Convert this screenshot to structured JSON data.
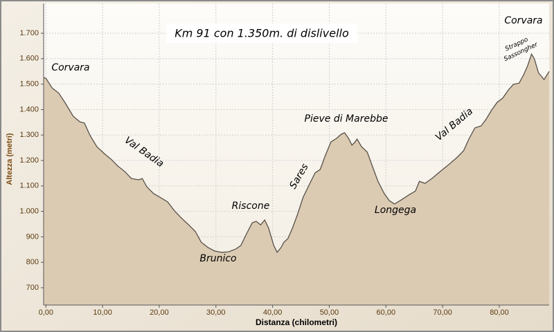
{
  "chart_data": {
    "type": "area",
    "title": "Km 91 con 1.350m. di dislivello",
    "x_label": "Distanza (chilometri)",
    "y_label": "Altezza (metri)",
    "annotations": [
      "Corvara",
      "Val Badia",
      "Riscone",
      "Brunico",
      "Sares",
      "Pieve di Marebbe",
      "Longega",
      "Val Badia",
      "Corvara",
      "Strappo",
      "Sassongher"
    ],
    "x": [
      -0.4,
      0,
      1.1,
      2.3,
      3.5,
      4.8,
      6.0,
      6.8,
      7.8,
      9.0,
      10.3,
      11.5,
      12.7,
      13.9,
      15.1,
      16.4,
      17.0,
      17.8,
      19.0,
      20.3,
      21.5,
      22.7,
      23.9,
      25.2,
      26.4,
      27.4,
      28.6,
      29.8,
      31.0,
      32.2,
      33.5,
      34.4,
      35.4,
      36.4,
      37.1,
      37.9,
      38.6,
      39.3,
      40.2,
      40.8,
      41.5,
      42.0,
      42.7,
      43.5,
      44.4,
      45.4,
      46.4,
      47.5,
      48.4,
      49.3,
      50.3,
      51.3,
      52.1,
      52.7,
      53.4,
      54.0,
      54.5,
      54.9,
      55.7,
      56.7,
      57.6,
      58.6,
      59.7,
      60.6,
      61.5,
      62.5,
      64.0,
      65.2,
      65.9,
      66.9,
      68.1,
      69.6,
      71.1,
      72.5,
      73.7,
      74.7,
      75.7,
      76.8,
      77.7,
      78.6,
      79.6,
      80.6,
      81.6,
      82.5,
      83.5,
      84.3,
      85.0,
      85.7,
      86.2,
      86.9,
      87.9,
      88.8
    ],
    "values": [
      1526,
      1523,
      1485,
      1464,
      1423,
      1374,
      1352,
      1347,
      1298,
      1254,
      1227,
      1205,
      1178,
      1157,
      1129,
      1124,
      1129,
      1097,
      1070,
      1053,
      1037,
      1002,
      974,
      947,
      920,
      879,
      858,
      844,
      839,
      841,
      852,
      866,
      912,
      955,
      961,
      947,
      966,
      934,
      866,
      839,
      858,
      879,
      893,
      934,
      988,
      1056,
      1102,
      1151,
      1165,
      1219,
      1273,
      1287,
      1303,
      1309,
      1287,
      1260,
      1271,
      1284,
      1254,
      1233,
      1178,
      1118,
      1070,
      1042,
      1029,
      1042,
      1064,
      1080,
      1118,
      1110,
      1129,
      1157,
      1184,
      1211,
      1238,
      1287,
      1328,
      1336,
      1363,
      1396,
      1428,
      1445,
      1477,
      1499,
      1504,
      1537,
      1572,
      1618,
      1599,
      1545,
      1518,
      1550
    ],
    "color": "#dccbb3",
    "line_color": "#555049",
    "xlim": [
      -0.4,
      88.8
    ],
    "ylim": [
      632,
      1817
    ],
    "xticks": [
      {
        "value": 0,
        "label": "0,00"
      },
      {
        "value": 10,
        "label": "10,00"
      },
      {
        "value": 20,
        "label": "20,00"
      },
      {
        "value": 30,
        "label": "30,00"
      },
      {
        "value": 40,
        "label": "40,00"
      },
      {
        "value": 50,
        "label": "50,00"
      },
      {
        "value": 60,
        "label": "60,00"
      },
      {
        "value": 70,
        "label": "70,00"
      },
      {
        "value": 80,
        "label": "80,00"
      }
    ],
    "yticks": [
      700,
      800,
      900,
      {
        "value": 1000,
        "label": "1.000"
      },
      {
        "value": 1100,
        "label": "1.100"
      },
      {
        "value": 1200,
        "label": "1.200"
      },
      {
        "value": 1300,
        "label": "1.300"
      },
      {
        "value": 1400,
        "label": "1.400"
      },
      {
        "value": 1500,
        "label": "1.500"
      },
      {
        "value": 1600,
        "label": "1.600"
      },
      {
        "value": 1700,
        "label": "1.700"
      }
    ],
    "grid": true
  }
}
